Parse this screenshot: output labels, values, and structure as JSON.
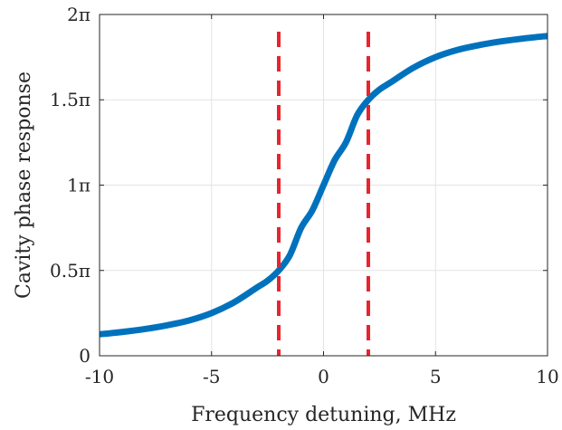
{
  "chart_data": {
    "type": "line",
    "title": "",
    "xlabel": "Frequency detuning, MHz",
    "ylabel": "Cavity phase response",
    "xlim": [
      -10,
      10
    ],
    "ylim": [
      0,
      6.283185
    ],
    "grid": true,
    "legend": "none",
    "x_ticks": [
      {
        "value": -10,
        "label": "-10"
      },
      {
        "value": -5,
        "label": "-5"
      },
      {
        "value": 0,
        "label": "0"
      },
      {
        "value": 5,
        "label": "5"
      },
      {
        "value": 10,
        "label": "10"
      }
    ],
    "y_ticks": [
      {
        "value": 0,
        "label": "0"
      },
      {
        "value": 1.570796,
        "label": "0.5π"
      },
      {
        "value": 3.141593,
        "label": "1π"
      },
      {
        "value": 4.712389,
        "label": "1.5π"
      },
      {
        "value": 6.283185,
        "label": "2π"
      }
    ],
    "series": [
      {
        "color": "#0072BD",
        "x": [
          -10,
          -9,
          -8,
          -7,
          -6,
          -5,
          -4,
          -3,
          -2.5,
          -2,
          -1.5,
          -1,
          -0.5,
          0,
          0.5,
          1,
          1.5,
          2,
          2.5,
          3,
          4,
          5,
          6,
          7,
          8,
          9,
          10
        ],
        "y": [
          0.395,
          0.438,
          0.491,
          0.56,
          0.65,
          0.785,
          0.983,
          1.249,
          1.381,
          1.571,
          1.855,
          2.356,
          2.678,
          3.142,
          3.605,
          3.927,
          4.428,
          4.712,
          4.902,
          5.034,
          5.3,
          5.498,
          5.633,
          5.723,
          5.792,
          5.845,
          5.888
        ]
      }
    ],
    "vlines": [
      {
        "x": -2,
        "color": "#E8242E",
        "style": "dashed"
      },
      {
        "x": 2,
        "color": "#E8242E",
        "style": "dashed"
      }
    ]
  }
}
